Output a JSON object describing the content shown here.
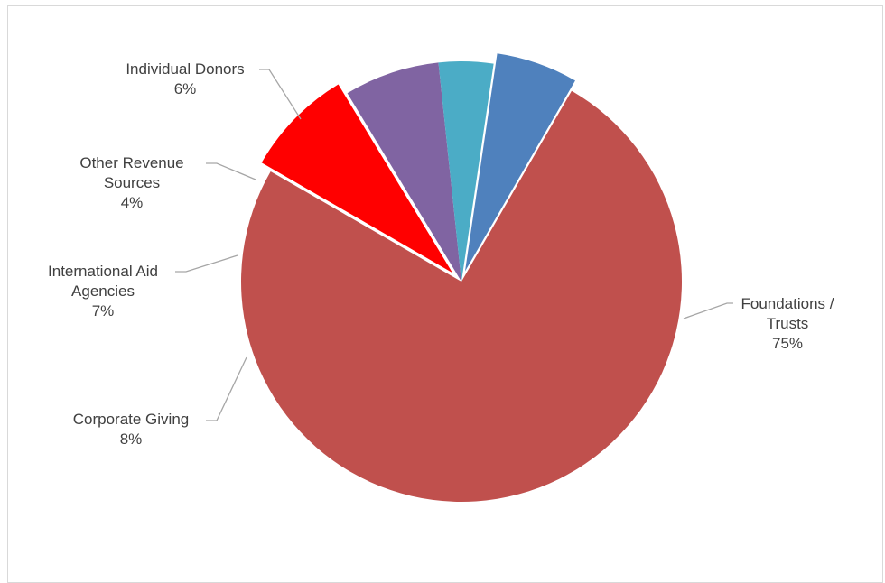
{
  "chart_data": {
    "type": "pie",
    "title": "",
    "slices": [
      {
        "label_lines": [
          "Foundations /",
          "Trusts"
        ],
        "value": 75,
        "value_label": "75%",
        "color": "#c0504d"
      },
      {
        "label_lines": [
          "Corporate Giving"
        ],
        "value": 8,
        "value_label": "8%",
        "color": "#ff0000"
      },
      {
        "label_lines": [
          "International Aid",
          "Agencies"
        ],
        "value": 7,
        "value_label": "7%",
        "color": "#8064a2"
      },
      {
        "label_lines": [
          "Other Revenue",
          "Sources"
        ],
        "value": 4,
        "value_label": "4%",
        "color": "#4bacc6"
      },
      {
        "label_lines": [
          "Individual Donors"
        ],
        "value": 6,
        "value_label": "6%",
        "color": "#4f81bd"
      }
    ],
    "legend": "none",
    "data_labels": "outside-with-leader-lines"
  }
}
